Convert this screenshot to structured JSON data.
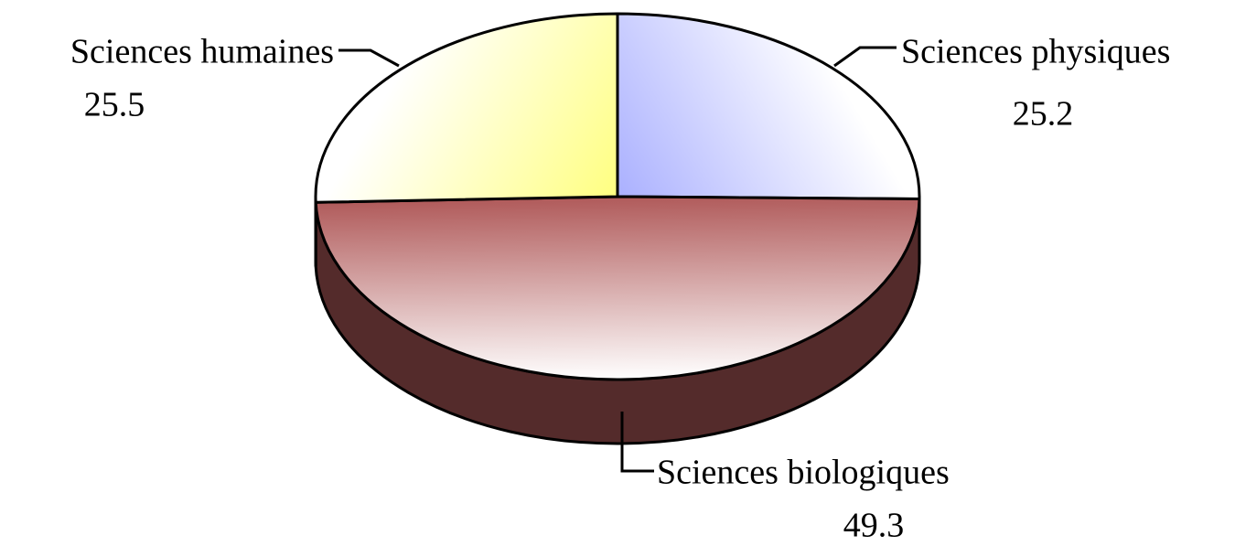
{
  "chart_data": {
    "type": "pie3d",
    "categories": [
      "Sciences physiques",
      "Sciences biologiques",
      "Sciences humaines"
    ],
    "values": [
      25.2,
      49.3,
      25.5
    ],
    "colors": [
      "#aab0ff",
      "#b05a5a",
      "#ffff80"
    ]
  }
}
